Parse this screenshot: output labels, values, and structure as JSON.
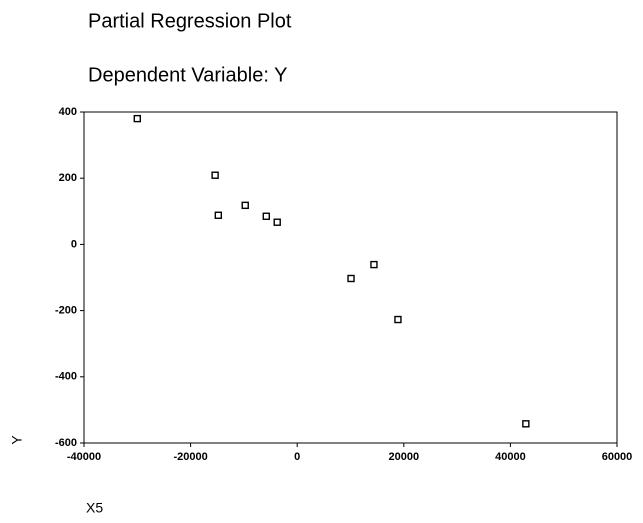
{
  "chart_data": {
    "type": "scatter",
    "title": "Partial Regression Plot",
    "subtitle": "Dependent Variable: Y",
    "x_label": "X5",
    "y_label": "Y",
    "x": [
      -30000,
      -15400,
      -14800,
      -9750,
      -5800,
      -3750,
      10100,
      14400,
      18900,
      42900
    ],
    "values": [
      380,
      209,
      88,
      118,
      85,
      67,
      -103,
      -61,
      -227,
      -542
    ],
    "color": "#000000",
    "xlim": [
      -40000,
      60000
    ],
    "xticks": [
      -40000,
      -20000,
      0,
      20000,
      40000,
      60000
    ],
    "ylim": [
      -600,
      400
    ],
    "yticks": [
      -600,
      -400,
      -200,
      0,
      200,
      400
    ],
    "grid": false
  }
}
